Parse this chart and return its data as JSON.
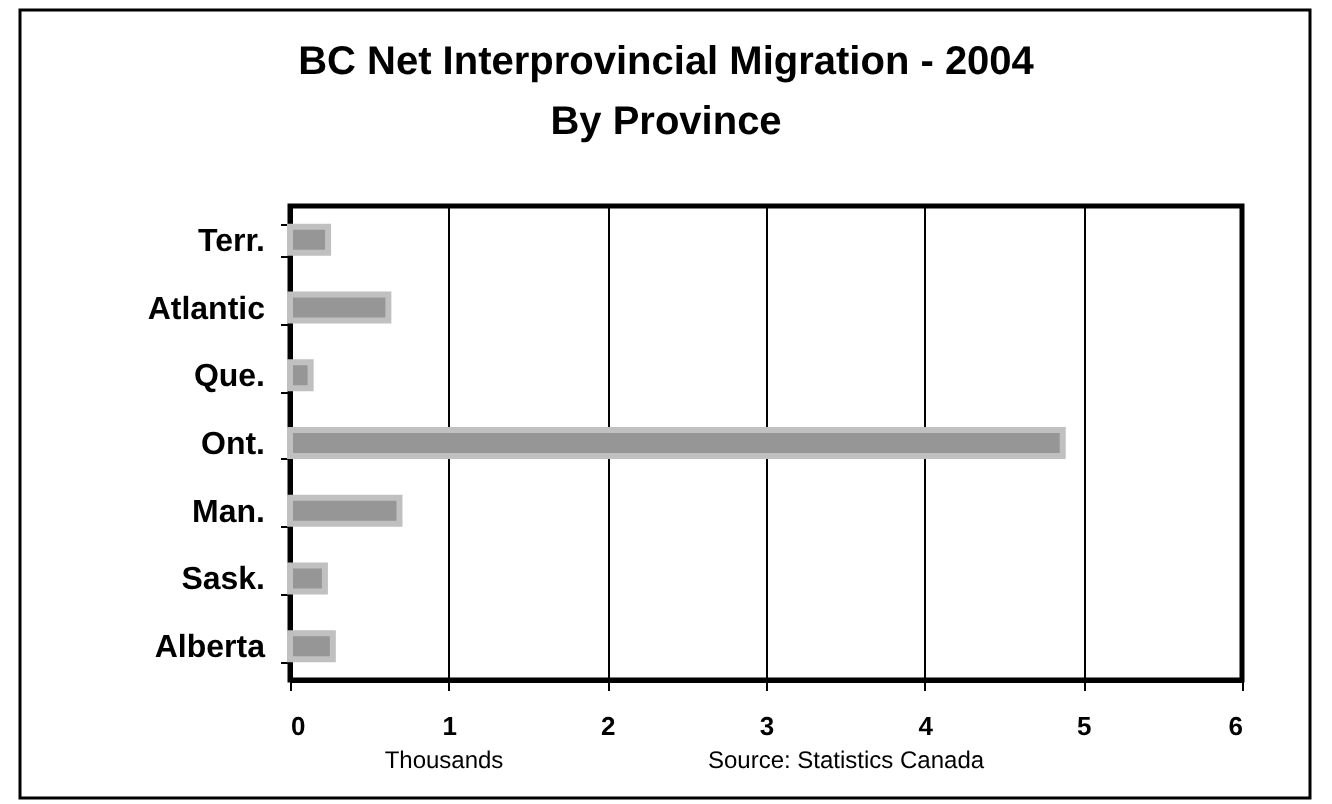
{
  "chart_data": {
    "type": "bar",
    "orientation": "horizontal",
    "title": "BC Net Interprovincial Migration  - 2004\nBy Province",
    "categories": [
      "Terr.",
      "Atlantic",
      "Que.",
      "Ont.",
      "Man.",
      "Sask.",
      "Alberta"
    ],
    "values": [
      0.24,
      0.62,
      0.13,
      4.87,
      0.69,
      0.22,
      0.27
    ],
    "color": "#969696",
    "xlim": [
      0,
      6
    ],
    "xticks": [
      0,
      1,
      2,
      3,
      4,
      5,
      6
    ],
    "grid": "x",
    "annotations": [
      "Thousands",
      "Source: Statistics Canada"
    ]
  }
}
